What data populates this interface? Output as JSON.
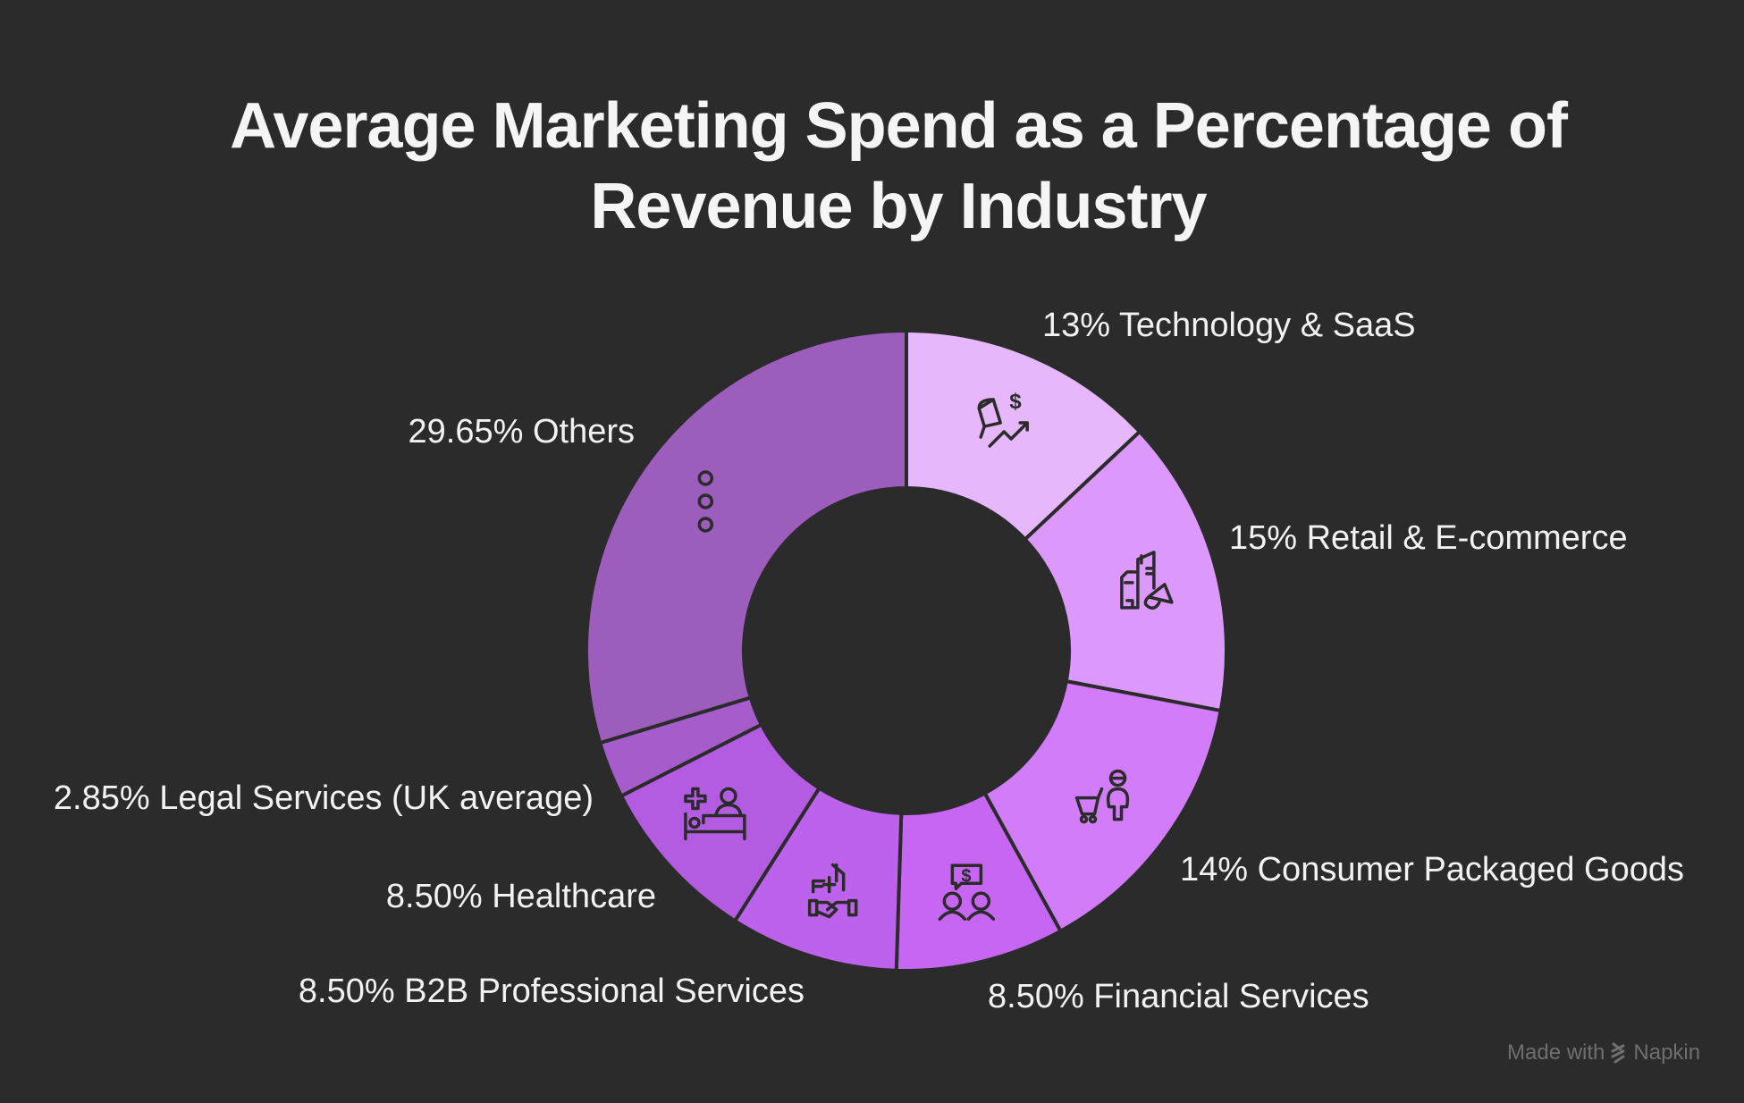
{
  "title_lines": [
    "Average Marketing Spend as a Percentage of",
    "Revenue by Industry"
  ],
  "credit": {
    "prefix": "Made with",
    "brand": "Napkin",
    "icon": "napkin-logo-icon"
  },
  "chart_data": {
    "type": "pie",
    "variant": "donut",
    "title": "Average Marketing Spend as a Percentage of Revenue by Industry",
    "start_angle": "top, clockwise",
    "unit": "%",
    "slices": [
      {
        "label": "Technology & SaaS",
        "value": 13,
        "display": "13%",
        "color": "#e6b8fb",
        "icon": "megaphone-dollar-growth-icon",
        "label_side": "right"
      },
      {
        "label": "Retail & E-commerce",
        "value": 15,
        "display": "15%",
        "color": "#dc98fb",
        "icon": "store-buildings-megaphone-icon",
        "label_side": "right"
      },
      {
        "label": "Consumer Packaged Goods",
        "value": 14,
        "display": "14%",
        "color": "#d27cfa",
        "icon": "shopper-cart-icon",
        "label_side": "right"
      },
      {
        "label": "Financial Services",
        "value": 8.5,
        "display": "8.50%",
        "color": "#c766f2",
        "icon": "people-dollar-chat-icon",
        "label_side": "bottom"
      },
      {
        "label": "B2B Professional Services",
        "value": 8.5,
        "display": "8.50%",
        "color": "#bd62ec",
        "icon": "handshake-buildings-icon",
        "label_side": "bottom-left"
      },
      {
        "label": "Healthcare",
        "value": 8.5,
        "display": "8.50%",
        "color": "#b45ce1",
        "icon": "hospital-bed-icon",
        "label_side": "left"
      },
      {
        "label": "Legal Services (UK average)",
        "value": 2.85,
        "display": "2.85%",
        "color": "#a75ccc",
        "icon": "",
        "label_side": "left"
      },
      {
        "label": "Others",
        "value": 29.65,
        "display": "29.65%",
        "color": "#9d5dbd",
        "icon": "more-dots-icon",
        "label_side": "left"
      }
    ],
    "colors": {
      "background": "#2b2b2b",
      "separator": "#2b2b2b",
      "label_text": "#f2f2f2",
      "icon_stroke": "#2b2b2b"
    }
  }
}
